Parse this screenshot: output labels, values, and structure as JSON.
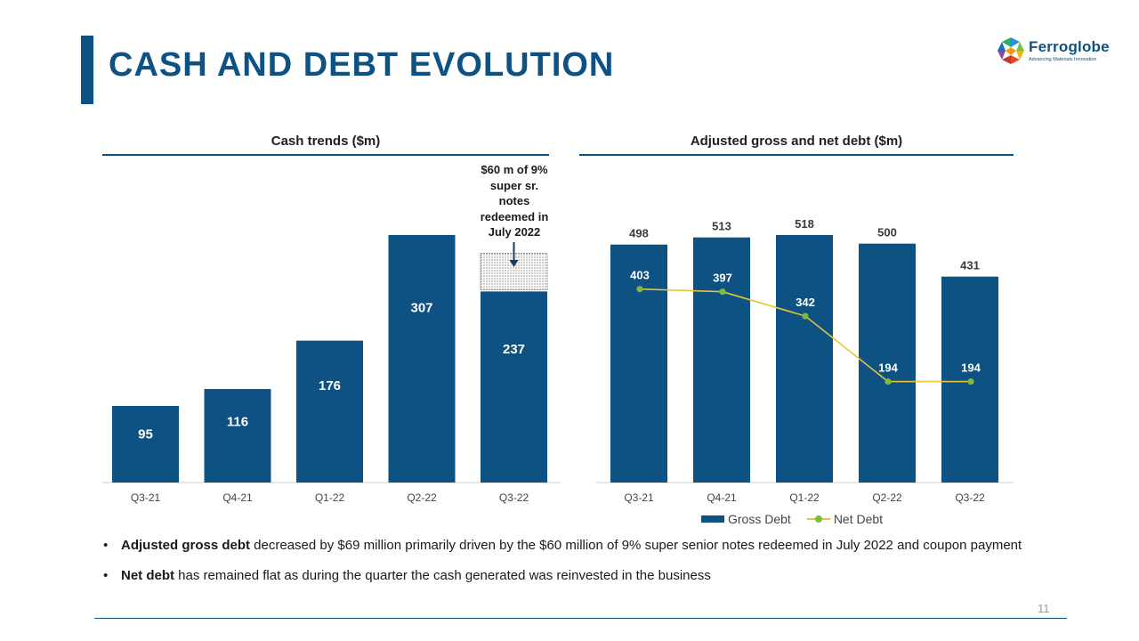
{
  "slide": {
    "title": "CASH AND DEBT EVOLUTION",
    "page_number": "11",
    "accent_color": "#0d5283"
  },
  "logo": {
    "name": "Ferroglobe",
    "tagline": "Advancing Materials Innovation"
  },
  "chart_data": [
    {
      "type": "bar",
      "title": "Cash trends ($m)",
      "categories": [
        "Q3-21",
        "Q4-21",
        "Q1-22",
        "Q2-22",
        "Q3-22"
      ],
      "values": [
        95,
        116,
        176,
        307,
        237
      ],
      "labels": [
        "95",
        "116",
        "176",
        "307",
        "237"
      ],
      "redeemed_notes": 60,
      "annotation": "$60 m of 9% super sr. notes redeemed in July 2022",
      "bar_color": "#0d5283",
      "ylim": [
        0,
        307
      ]
    },
    {
      "type": "bar+line",
      "title": "Adjusted gross and net debt ($m)",
      "categories": [
        "Q3-21",
        "Q4-21",
        "Q1-22",
        "Q2-22",
        "Q3-22"
      ],
      "series": [
        {
          "name": "Gross Debt",
          "type": "bar",
          "values": [
            498,
            513,
            518,
            500,
            431
          ],
          "labels": [
            "498",
            "513",
            "518",
            "500",
            "431"
          ],
          "color": "#0d5283"
        },
        {
          "name": "Net Debt",
          "type": "line",
          "values": [
            403,
            397,
            342,
            194,
            194
          ],
          "labels": [
            "403",
            "397",
            "342",
            "194",
            "194"
          ],
          "color": "#e8c534",
          "marker_color": "#7fb93d"
        }
      ],
      "ylim": [
        0,
        518
      ]
    }
  ],
  "bullets": [
    {
      "bold": "Adjusted gross debt",
      "text": " decreased by $69 million primarily driven by the  $60 million of 9% super senior notes redeemed in July 2022 and coupon payment"
    },
    {
      "bold": "Net debt",
      "text": " has remained flat as during the quarter the cash generated was reinvested in the business"
    }
  ]
}
